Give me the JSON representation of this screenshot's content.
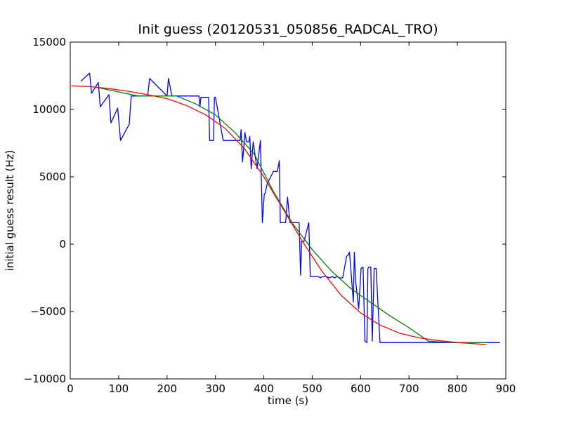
{
  "chart_data": {
    "type": "line",
    "title": "Init guess (20120531_050856_RADCAL_TRO)",
    "xlabel": "time (s)",
    "ylabel": "initial guess result (Hz)",
    "xlim": [
      0,
      900
    ],
    "ylim": [
      -10000,
      15000
    ],
    "xticks": [
      0,
      100,
      200,
      300,
      400,
      500,
      600,
      700,
      800,
      900
    ],
    "yticks": [
      -10000,
      -5000,
      0,
      5000,
      10000,
      15000
    ],
    "xtick_labels": [
      "0",
      "100",
      "200",
      "300",
      "400",
      "500",
      "600",
      "700",
      "800",
      "900"
    ],
    "ytick_labels": [
      "−10000",
      "−5000",
      "0",
      "5000",
      "10000",
      "15000"
    ],
    "grid": false,
    "legend": "none",
    "series": [
      {
        "color": "#0000ff",
        "x": [
          22,
          40,
          44,
          58,
          62,
          80,
          84,
          98,
          104,
          122,
          126,
          160,
          164,
          200,
          203,
          210,
          266,
          268,
          270,
          286,
          288,
          296,
          298,
          300,
          316,
          326,
          340,
          351,
          353,
          356,
          358,
          361,
          364,
          369,
          371,
          374,
          376,
          378,
          386,
          393,
          397,
          401,
          403,
          407,
          420,
          428,
          432,
          434,
          437,
          445,
          449,
          454,
          457,
          463,
          473,
          476,
          478,
          479,
          483,
          493,
          496,
          499,
          501,
          507,
          513,
          517,
          521,
          529,
          535,
          541,
          547,
          551,
          557,
          563,
          571,
          574,
          577,
          585,
          587,
          590,
          596,
          601,
          605,
          609,
          613,
          615,
          617,
          621,
          624,
          628,
          632,
          640,
          643,
          649,
          651,
          653,
          655,
          657,
          674,
          676,
          679,
          682,
          690,
          708,
          720,
          735,
          810,
          888
        ],
        "y": [
          12100,
          12700,
          11200,
          12000,
          10200,
          11100,
          9000,
          10100,
          7700,
          8900,
          11000,
          11000,
          12300,
          11000,
          12300,
          11000,
          11000,
          10200,
          10900,
          10900,
          7700,
          7700,
          10900,
          10900,
          7700,
          7700,
          7700,
          7700,
          8500,
          6100,
          6900,
          8300,
          7600,
          7600,
          8000,
          5600,
          6600,
          7600,
          5600,
          7700,
          1600,
          3700,
          3800,
          4500,
          5400,
          5400,
          6200,
          1600,
          1600,
          1600,
          3500,
          1600,
          1600,
          1600,
          1600,
          -2300,
          200,
          200,
          200,
          1600,
          -2400,
          -2400,
          -2400,
          -2400,
          -2400,
          -2500,
          -2400,
          -2400,
          -2500,
          -2400,
          -2500,
          -2400,
          -2500,
          -2500,
          -900,
          -800,
          -600,
          -4300,
          -600,
          -2800,
          -4800,
          -1800,
          -1700,
          -7200,
          -7300,
          -1800,
          -1700,
          -1700,
          -7200,
          -1800,
          -1800,
          -7300,
          -7300,
          -7300,
          -7300,
          -7300,
          -7300,
          -7300,
          -7300,
          -7300,
          -7300,
          -7300,
          -7300,
          -7300,
          -7300,
          -7300,
          -7300,
          -7300
        ]
      },
      {
        "color": "#008000",
        "x": [
          60,
          100,
          140,
          180,
          220,
          260,
          300,
          340,
          380,
          420,
          460,
          500,
          540,
          580,
          620,
          660,
          700,
          740,
          760,
          800,
          860
        ],
        "y": [
          11600,
          11300,
          11000,
          11000,
          11000,
          10400,
          9600,
          8300,
          6700,
          3900,
          1500,
          -400,
          -2000,
          -3300,
          -4300,
          -5300,
          -6200,
          -7200,
          -7250,
          -7300,
          -7300
        ]
      },
      {
        "color": "#ff0000",
        "x": [
          2,
          40,
          80,
          120,
          160,
          200,
          240,
          280,
          320,
          360,
          400,
          440,
          480,
          520,
          560,
          600,
          640,
          680,
          720,
          760,
          800,
          860
        ],
        "y": [
          11750,
          11700,
          11550,
          11350,
          11100,
          10800,
          10300,
          9600,
          8600,
          7100,
          5000,
          2600,
          200,
          -2000,
          -3800,
          -5100,
          -6000,
          -6600,
          -6950,
          -7150,
          -7300,
          -7450
        ]
      }
    ]
  }
}
